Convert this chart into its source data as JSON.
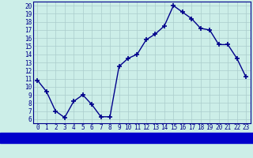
{
  "x": [
    0,
    1,
    2,
    3,
    4,
    5,
    6,
    7,
    8,
    9,
    10,
    11,
    12,
    13,
    14,
    15,
    16,
    17,
    18,
    19,
    20,
    21,
    22,
    23
  ],
  "y": [
    10.8,
    9.4,
    7.0,
    6.2,
    8.2,
    9.0,
    7.8,
    6.3,
    6.3,
    12.5,
    13.5,
    14.0,
    15.8,
    16.5,
    17.5,
    20.0,
    19.2,
    18.4,
    17.2,
    17.0,
    15.2,
    15.2,
    13.5,
    11.2
  ],
  "line_color": "#00008b",
  "marker": "+",
  "marker_size": 4,
  "bg_color": "#cceee8",
  "grid_color": "#aacccc",
  "xlabel_bg": "#0000cc",
  "xlabel_color": "#ffffff",
  "xlim": [
    -0.5,
    23.5
  ],
  "ylim": [
    5.5,
    20.5
  ],
  "yticks": [
    6,
    7,
    8,
    9,
    10,
    11,
    12,
    13,
    14,
    15,
    16,
    17,
    18,
    19,
    20
  ],
  "xticks": [
    0,
    1,
    2,
    3,
    4,
    5,
    6,
    7,
    8,
    9,
    10,
    11,
    12,
    13,
    14,
    15,
    16,
    17,
    18,
    19,
    20,
    21,
    22,
    23
  ],
  "tick_fontsize": 5.5,
  "xlabel_fontsize": 7.0,
  "line_width": 1.0,
  "marker_color": "#00008b"
}
